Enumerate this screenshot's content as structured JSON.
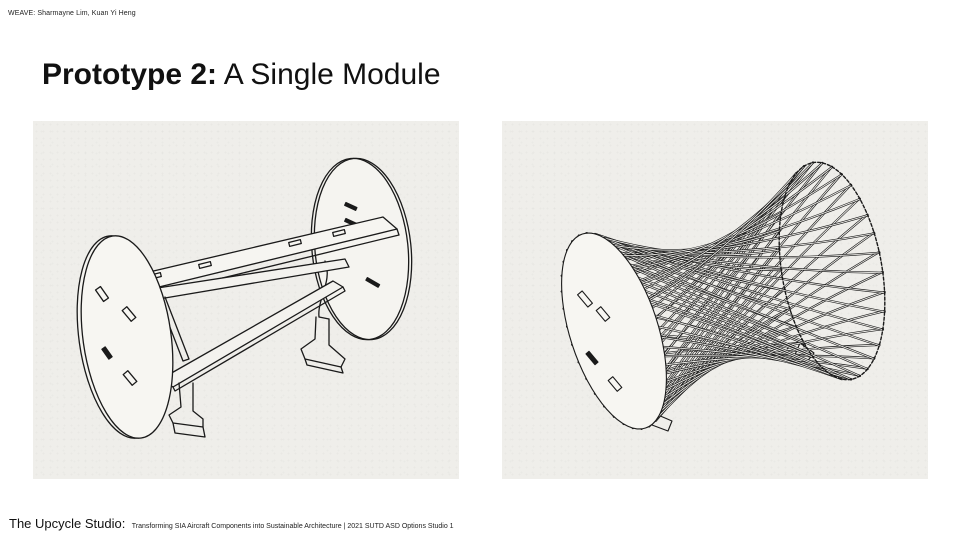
{
  "header": {
    "credit": "WEAVE: Sharmayne Lim, Kuan Yi Heng"
  },
  "slide": {
    "title_bold": "Prototype 2:",
    "title_rest": "A Single Module"
  },
  "figures": {
    "left": {
      "depicts": "exploded frame module line drawing"
    },
    "right": {
      "depicts": "woven strip module line drawing"
    }
  },
  "footer": {
    "studio": "The Upcycle Studio:",
    "subtitle": "Transforming SIA Aircraft Components into Sustainable Architecture | 2021 SUTD ASD Options Studio 1"
  }
}
